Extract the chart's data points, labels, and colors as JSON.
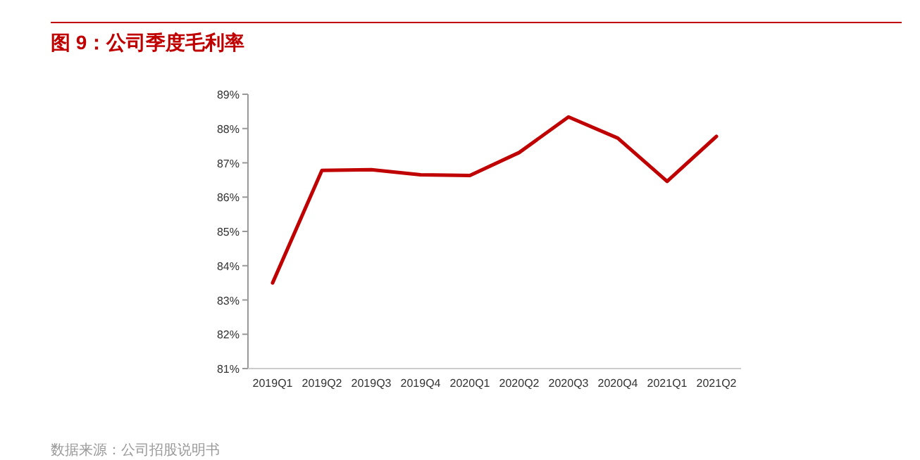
{
  "chart_data": {
    "type": "line",
    "title": "图 9：公司季度毛利率",
    "categories": [
      "2019Q1",
      "2019Q2",
      "2019Q3",
      "2019Q4",
      "2020Q1",
      "2020Q2",
      "2020Q3",
      "2020Q4",
      "2021Q1",
      "2021Q2"
    ],
    "series": [
      {
        "color": "#c00000",
        "values": [
          83.5,
          86.78,
          86.8,
          86.65,
          86.63,
          87.3,
          88.34,
          87.72,
          86.46,
          87.77
        ]
      }
    ],
    "ylim": [
      81,
      89
    ],
    "yticks": [
      {
        "value": 81,
        "label": "81%"
      },
      {
        "value": 82,
        "label": "82%"
      },
      {
        "value": 83,
        "label": "83%"
      },
      {
        "value": 84,
        "label": "84%"
      },
      {
        "value": 85,
        "label": "85%"
      },
      {
        "value": 86,
        "label": "86%"
      },
      {
        "value": 87,
        "label": "87%"
      },
      {
        "value": 88,
        "label": "88%"
      },
      {
        "value": 89,
        "label": "89%"
      }
    ],
    "grid": false,
    "marker": "none",
    "line_style": "solid",
    "annotations": [
      "数据来源：公司招股说明书"
    ]
  }
}
